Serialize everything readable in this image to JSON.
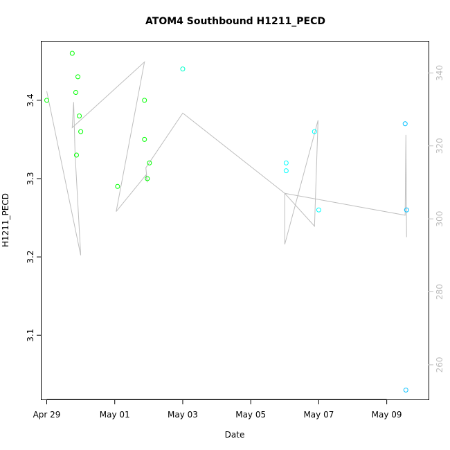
{
  "chart_data": {
    "type": "scatter",
    "title": "ATOM4 Southbound H1211_PECD",
    "xlabel": "Date",
    "ylabel": "H1211_PECD",
    "xlim": [
      "2016-04-28T20:20",
      "2016-05-10T05:30"
    ],
    "ylim": [
      3.018,
      3.475
    ],
    "x_ticks": [
      {
        "date": "2016-04-29T00:00",
        "label": "Apr 29"
      },
      {
        "date": "2016-05-01T00:00",
        "label": "May 01"
      },
      {
        "date": "2016-05-03T00:00",
        "label": "May 03"
      },
      {
        "date": "2016-05-05T00:00",
        "label": "May 05"
      },
      {
        "date": "2016-05-07T00:00",
        "label": "May 07"
      },
      {
        "date": "2016-05-09T00:00",
        "label": "May 09"
      }
    ],
    "y_ticks": [
      3.1,
      3.2,
      3.3,
      3.4
    ],
    "y2_ticks": [
      260,
      280,
      300,
      320,
      340
    ],
    "y2lim": [
      250.5,
      348.6
    ],
    "grid": false,
    "colors": {
      "points_early": "#00ff00",
      "points_late": "#00ffff",
      "points_last": "#00bfff",
      "line": "#bebebe"
    },
    "points": [
      {
        "x": "2016-04-29T00:00",
        "y": 3.4,
        "color": "#00ff00"
      },
      {
        "x": "2016-04-29T18:00",
        "y": 3.46,
        "color": "#00ff00"
      },
      {
        "x": "2016-04-29T20:30",
        "y": 3.41,
        "color": "#00ff00"
      },
      {
        "x": "2016-04-29T21:00",
        "y": 3.33,
        "color": "#00ff00"
      },
      {
        "x": "2016-04-29T22:00",
        "y": 3.43,
        "color": "#00ff00"
      },
      {
        "x": "2016-04-29T23:00",
        "y": 3.38,
        "color": "#00ff00"
      },
      {
        "x": "2016-04-30T00:00",
        "y": 3.36,
        "color": "#00ff00"
      },
      {
        "x": "2016-05-01T02:00",
        "y": 3.29,
        "color": "#00ff00"
      },
      {
        "x": "2016-05-01T21:00",
        "y": 3.4,
        "color": "#00ff00"
      },
      {
        "x": "2016-05-01T21:00",
        "y": 3.35,
        "color": "#00ff00"
      },
      {
        "x": "2016-05-01T23:00",
        "y": 3.3,
        "color": "#00ff00"
      },
      {
        "x": "2016-05-02T00:30",
        "y": 3.32,
        "color": "#00ff00"
      },
      {
        "x": "2016-05-03T00:00",
        "y": 3.44,
        "color": "#00ffcc"
      },
      {
        "x": "2016-05-06T01:00",
        "y": 3.32,
        "color": "#00ffff"
      },
      {
        "x": "2016-05-06T01:00",
        "y": 3.31,
        "color": "#00ffff"
      },
      {
        "x": "2016-05-06T21:00",
        "y": 3.36,
        "color": "#00ffff"
      },
      {
        "x": "2016-05-07T00:00",
        "y": 3.26,
        "color": "#00ffff"
      },
      {
        "x": "2016-05-09T13:00",
        "y": 3.37,
        "color": "#00bfff"
      },
      {
        "x": "2016-05-09T14:00",
        "y": 3.26,
        "color": "#00bfff"
      },
      {
        "x": "2016-05-09T13:30",
        "y": 3.03,
        "color": "#00bfff"
      }
    ],
    "line": [
      {
        "x": "2016-04-29T00:00",
        "y2": 335
      },
      {
        "x": "2016-04-30T00:00",
        "y2": 290
      },
      {
        "x": "2016-04-29T20:00",
        "y2": 318
      },
      {
        "x": "2016-04-29T19:00",
        "y2": 332
      },
      {
        "x": "2016-04-29T18:00",
        "y2": 325
      },
      {
        "x": "2016-05-01T21:00",
        "y2": 343
      },
      {
        "x": "2016-05-01T01:00",
        "y2": 302
      },
      {
        "x": "2016-05-01T22:00",
        "y2": 312
      },
      {
        "x": "2016-05-01T23:00",
        "y2": 310
      },
      {
        "x": "2016-05-01T22:00",
        "y2": 314
      },
      {
        "x": "2016-05-03T00:00",
        "y2": 329
      },
      {
        "x": "2016-05-06T00:00",
        "y2": 307
      },
      {
        "x": "2016-05-06T00:00",
        "y2": 293
      },
      {
        "x": "2016-05-06T23:30",
        "y2": 327
      },
      {
        "x": "2016-05-06T21:00",
        "y2": 298
      },
      {
        "x": "2016-05-06T00:00",
        "y2": 307
      },
      {
        "x": "2016-05-09T13:00",
        "y2": 301
      },
      {
        "x": "2016-05-09T13:30",
        "y2": 323
      },
      {
        "x": "2016-05-09T14:00",
        "y2": 295
      }
    ]
  }
}
